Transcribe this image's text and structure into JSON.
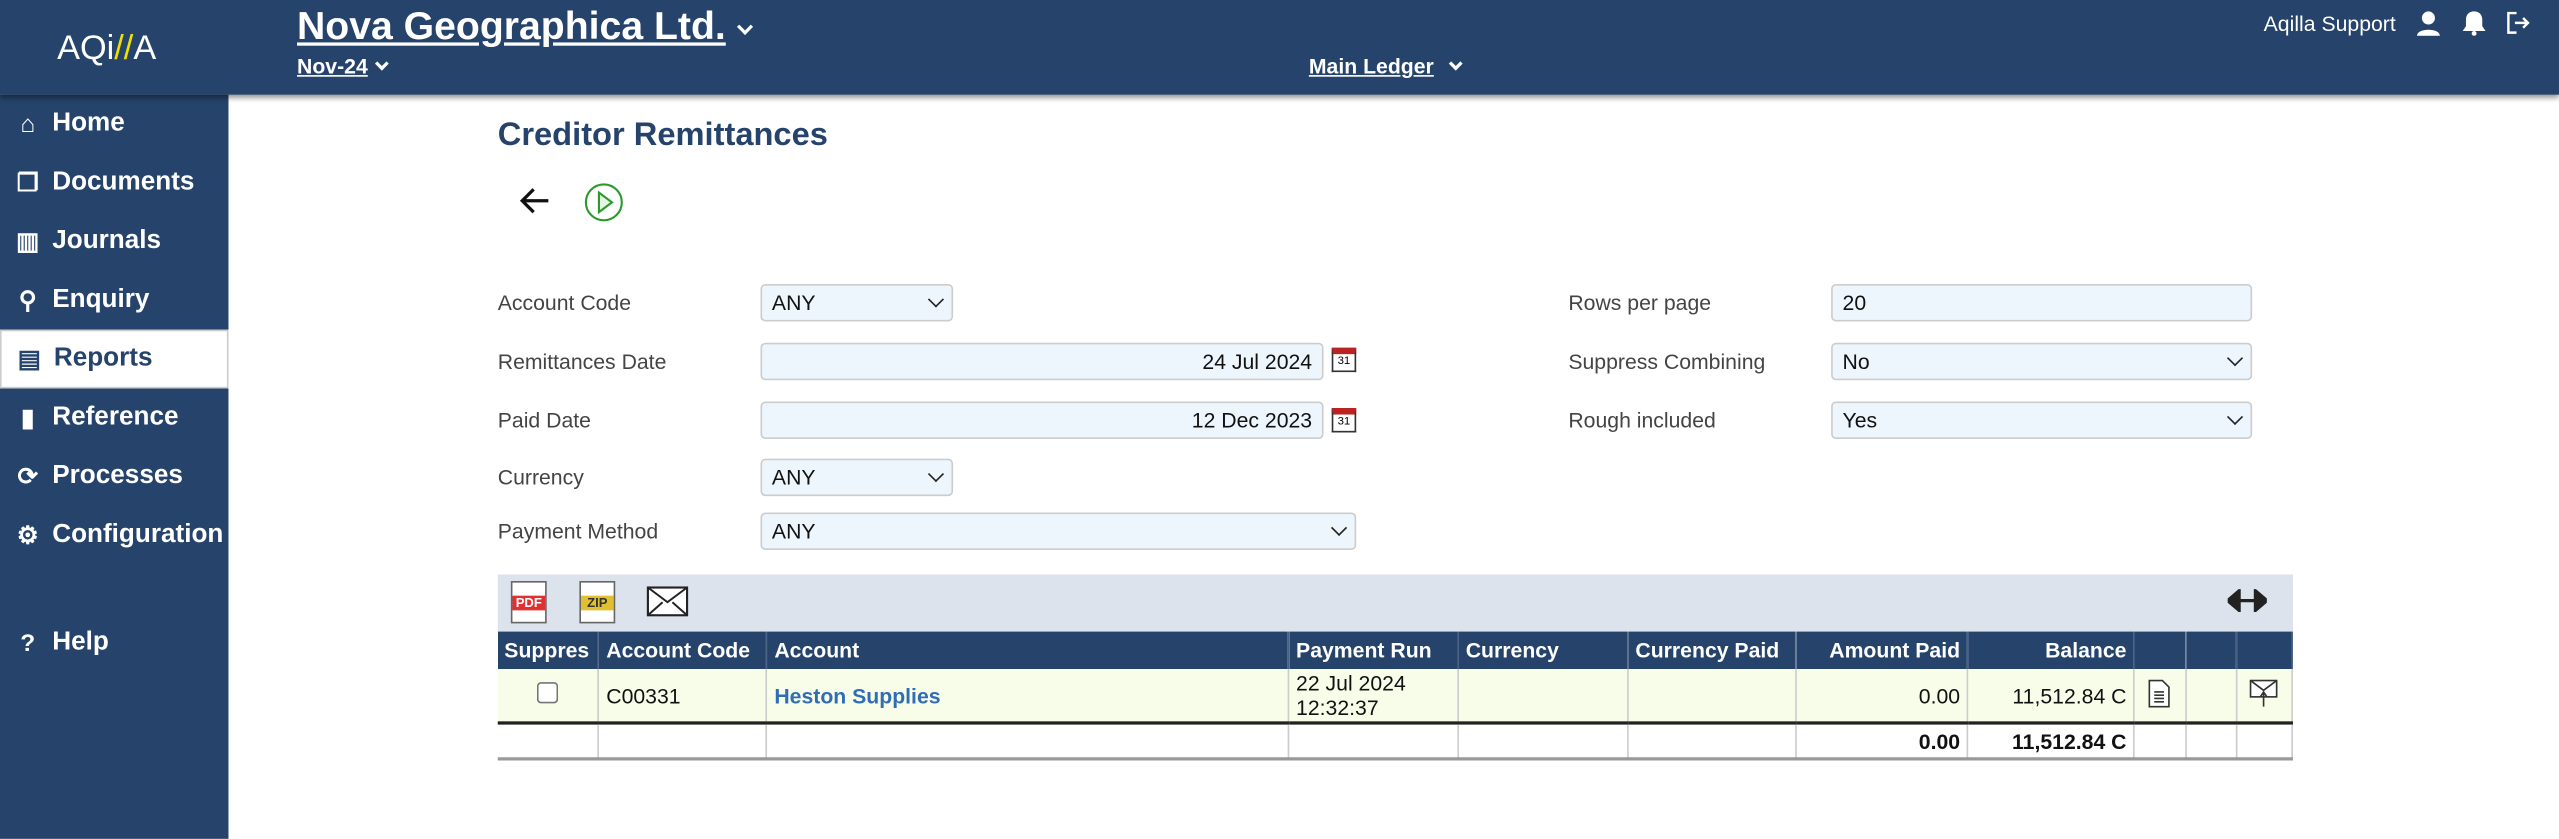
{
  "header": {
    "logo": "AQi//A",
    "company": "Nova Geographica Ltd.",
    "period": "Nov-24",
    "ledger": "Main Ledger",
    "user": "Aqilla Support"
  },
  "sidebar": {
    "items": [
      {
        "label": "Home",
        "icon": "home-icon"
      },
      {
        "label": "Documents",
        "icon": "documents-icon"
      },
      {
        "label": "Journals",
        "icon": "journals-icon"
      },
      {
        "label": "Enquiry",
        "icon": "search-icon"
      },
      {
        "label": "Reports",
        "icon": "reports-icon",
        "active": true
      },
      {
        "label": "Reference",
        "icon": "book-icon"
      },
      {
        "label": "Processes",
        "icon": "processes-icon"
      },
      {
        "label": "Configuration",
        "icon": "gear-icon"
      }
    ],
    "help": "Help"
  },
  "page": {
    "title": "Creditor Remittances"
  },
  "form": {
    "account_code": {
      "label": "Account Code",
      "value": "ANY"
    },
    "remittances_date": {
      "label": "Remittances Date",
      "value": "24 Jul 2024"
    },
    "paid_date": {
      "label": "Paid Date",
      "value": "12 Dec 2023"
    },
    "currency": {
      "label": "Currency",
      "value": "ANY"
    },
    "payment_method": {
      "label": "Payment Method",
      "value": "ANY"
    },
    "rows_per_page": {
      "label": "Rows per page",
      "value": "20"
    },
    "suppress_combining": {
      "label": "Suppress Combining",
      "value": "No"
    },
    "rough_included": {
      "label": "Rough included",
      "value": "Yes"
    },
    "calendar_day": "31"
  },
  "toolbar": {
    "pdf": "PDF",
    "zip": "ZIP"
  },
  "table": {
    "columns": [
      "Suppres",
      "Account Code",
      "Account",
      "Payment Run",
      "Currency",
      "Currency Paid",
      "Amount Paid",
      "Balance",
      "",
      "",
      ""
    ],
    "rows": [
      {
        "account_code": "C00331",
        "account": "Heston Supplies",
        "payment_run_date": "22 Jul 2024",
        "payment_run_time": "12:32:37",
        "currency": "",
        "currency_paid": "",
        "amount_paid": "0.00",
        "balance": "11,512.84 C"
      }
    ],
    "totals": {
      "amount_paid": "0.00",
      "balance": "11,512.84 C"
    }
  },
  "colors": {
    "brand": "#25436b",
    "accent": "#f0e000",
    "row_bg": "#f8fde9",
    "input_bg": "#eef6fd"
  }
}
